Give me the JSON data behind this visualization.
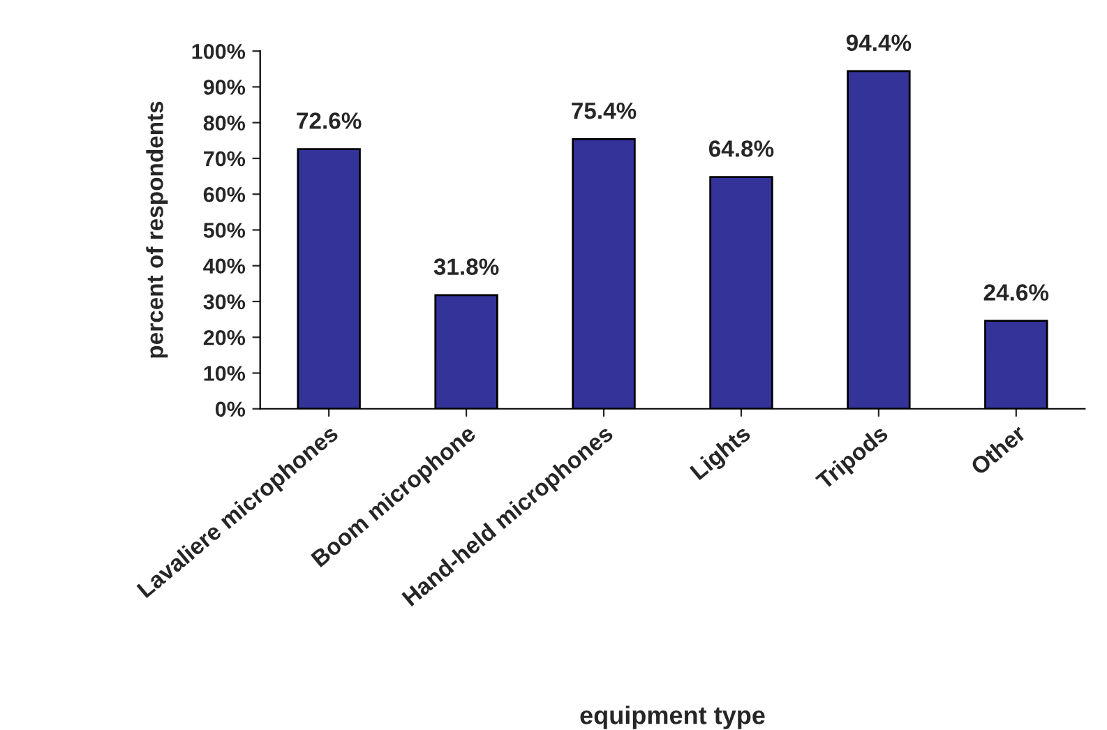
{
  "chart_data": {
    "type": "bar",
    "xlabel": "equipment type",
    "ylabel": "percent of respondents",
    "categories": [
      "Lavaliere microphones",
      "Boom microphone",
      "Hand-held microphones",
      "Lights",
      "Tripods",
      "Other"
    ],
    "values": [
      72.6,
      31.8,
      75.4,
      64.8,
      94.4,
      24.6
    ],
    "value_labels": [
      "72.6%",
      "31.8%",
      "75.4%",
      "64.8%",
      "94.4%",
      "24.6%"
    ],
    "color": "#333399",
    "ylim": [
      0,
      100
    ],
    "yticks": [
      {
        "value": 0,
        "label": "0%"
      },
      {
        "value": 10,
        "label": "10%"
      },
      {
        "value": 20,
        "label": "20%"
      },
      {
        "value": 30,
        "label": "30%"
      },
      {
        "value": 40,
        "label": "40%"
      },
      {
        "value": 50,
        "label": "50%"
      },
      {
        "value": 60,
        "label": "60%"
      },
      {
        "value": 70,
        "label": "70%"
      },
      {
        "value": 80,
        "label": "80%"
      },
      {
        "value": 90,
        "label": "90%"
      },
      {
        "value": 100,
        "label": "100%"
      }
    ],
    "grid": false,
    "legend": false
  }
}
